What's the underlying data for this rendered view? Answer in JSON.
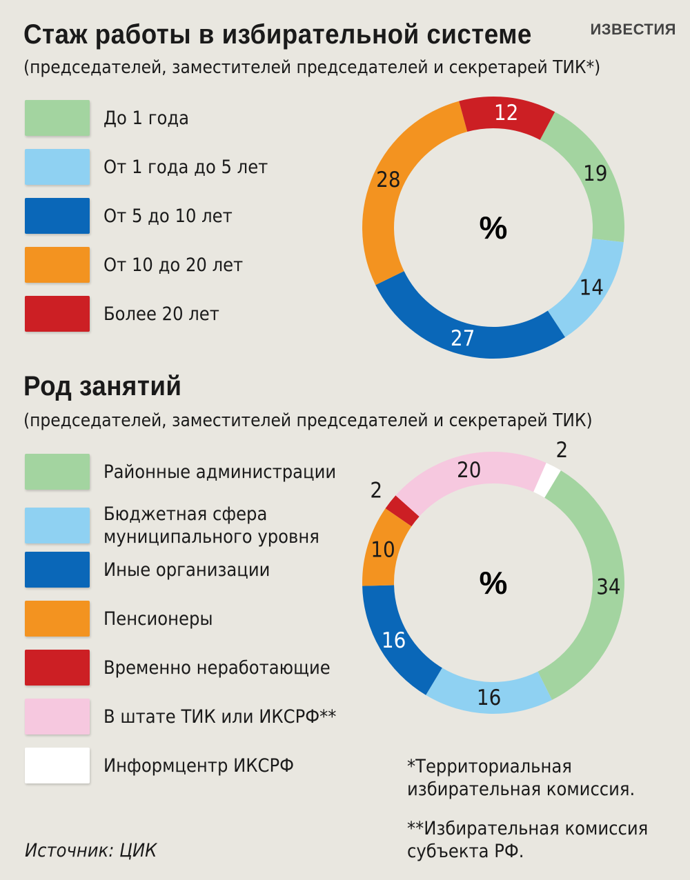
{
  "brand": "ИЗВЕСТИЯ",
  "chart_data": [
    {
      "type": "pie",
      "title": "Стаж работы в избирательной системе",
      "subtitle": "(председателей, заместителей председателей и секретарей ТИК*)",
      "center_label": "%",
      "categories": [
        "До 1 года",
        "От 1 года до 5 лет",
        "От 5 до 10 лет",
        "От 10 до 20 лет",
        "Более 20 лет"
      ],
      "values": [
        19,
        14,
        27,
        28,
        12
      ],
      "colors": [
        "#a3d4a0",
        "#8fd1f2",
        "#0a67b8",
        "#f39320",
        "#cc1f24"
      ],
      "label_colors": [
        "#1a1a1a",
        "#1a1a1a",
        "#ffffff",
        "#1a1a1a",
        "#ffffff"
      ],
      "start_angle_deg": -62
    },
    {
      "type": "pie",
      "title": "Род занятий",
      "subtitle": "(председателей, заместителей председателей и секретарей ТИК)",
      "center_label": "%",
      "categories": [
        "Районные администрации",
        "Бюджетная сфера муниципального уровня",
        "Иные организации",
        "Пенсионеры",
        "Временно неработающие",
        "В штате ТИК или ИКСРФ**",
        "Информцентр ИКСРФ"
      ],
      "values": [
        34,
        16,
        16,
        10,
        2,
        20,
        2
      ],
      "colors": [
        "#a3d4a0",
        "#8fd1f2",
        "#0a67b8",
        "#f39320",
        "#cc1f24",
        "#f6c8df",
        "#ffffff"
      ],
      "label_colors": [
        "#1a1a1a",
        "#1a1a1a",
        "#ffffff",
        "#1a1a1a",
        "#1a1a1a",
        "#1a1a1a",
        "#1a1a1a"
      ],
      "start_angle_deg": -59
    }
  ],
  "footnotes": [
    "*Территориальная избирательная комиссия.",
    "**Избирательная комиссия субъекта РФ."
  ],
  "source": "Источник: ЦИК"
}
